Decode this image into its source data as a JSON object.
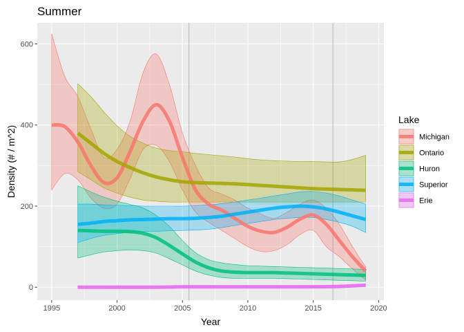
{
  "chart_data": {
    "type": "line",
    "title": "Summer",
    "xlabel": "Year",
    "ylabel": "Density (# / m^2)",
    "xlim": [
      1993.9,
      2020.4
    ],
    "ylim": [
      -32,
      652
    ],
    "x_ticks": [
      1995,
      2000,
      2005,
      2010,
      2015,
      2020
    ],
    "y_ticks": [
      0,
      200,
      400,
      600
    ],
    "x_tick_labels": [
      "1995",
      "2000",
      "2005",
      "2010",
      "2015",
      "2020"
    ],
    "y_tick_labels": [
      "0",
      "200",
      "400",
      "600"
    ],
    "grid": true,
    "reference_lines_x": [
      2005.5,
      2016.5
    ],
    "legend": {
      "title": "Lake",
      "position": "right"
    },
    "series": [
      {
        "name": "Michigan",
        "color": "#F8766D",
        "x": [
          1995,
          1996,
          1997,
          1998,
          1999,
          2000,
          2001,
          2002,
          2003,
          2004,
          2005,
          2006,
          2007,
          2008,
          2009,
          2010,
          2011,
          2012,
          2013,
          2014,
          2015,
          2016,
          2017,
          2018,
          2019
        ],
        "y": [
          400,
          396,
          358,
          300,
          258,
          270,
          335,
          410,
          450,
          410,
          320,
          240,
          205,
          190,
          170,
          150,
          138,
          135,
          148,
          168,
          178,
          155,
          115,
          75,
          40
        ],
        "lower": [
          240,
          280,
          265,
          220,
          195,
          205,
          268,
          340,
          350,
          310,
          240,
          185,
          160,
          140,
          120,
          100,
          88,
          90,
          105,
          130,
          140,
          100,
          75,
          45,
          18
        ],
        "upper": [
          625,
          520,
          470,
          390,
          320,
          340,
          410,
          530,
          575,
          500,
          380,
          300,
          245,
          230,
          215,
          195,
          180,
          170,
          185,
          205,
          215,
          195,
          155,
          100,
          50
        ]
      },
      {
        "name": "Ontario",
        "color": "#A3A500",
        "x": [
          1997,
          1998,
          1999,
          2000,
          2001,
          2002,
          2003,
          2004,
          2005,
          2006,
          2007,
          2008,
          2009,
          2010,
          2011,
          2012,
          2013,
          2014,
          2015,
          2016,
          2017,
          2018,
          2019
        ],
        "y": [
          380,
          355,
          330,
          310,
          295,
          282,
          272,
          265,
          260,
          258,
          257,
          256,
          255,
          253,
          251,
          249,
          247,
          245,
          243,
          242,
          241,
          240,
          239
        ],
        "lower": [
          285,
          265,
          245,
          232,
          222,
          215,
          212,
          210,
          210,
          210,
          210,
          210,
          210,
          210,
          210,
          210,
          210,
          210,
          210,
          210,
          210,
          210,
          210
        ],
        "upper": [
          502,
          470,
          432,
          398,
          372,
          355,
          343,
          337,
          334,
          330,
          327,
          324,
          321,
          317,
          314,
          312,
          311,
          310,
          310,
          309,
          309,
          315,
          325
        ]
      },
      {
        "name": "Huron",
        "color": "#00BF7D",
        "x": [
          1997,
          1998,
          1999,
          2000,
          2001,
          2002,
          2003,
          2004,
          2005,
          2006,
          2007,
          2008,
          2009,
          2010,
          2011,
          2012,
          2013,
          2014,
          2015,
          2016,
          2017,
          2018,
          2019
        ],
        "y": [
          140,
          139,
          138,
          138,
          137,
          133,
          122,
          103,
          82,
          62,
          48,
          40,
          37,
          36,
          36,
          36,
          35,
          34,
          33,
          32,
          31,
          30,
          29
        ],
        "lower": [
          72,
          80,
          87,
          90,
          92,
          90,
          84,
          70,
          55,
          40,
          30,
          24,
          22,
          22,
          22,
          22,
          21,
          20,
          19,
          18,
          17,
          16,
          15
        ],
        "upper": [
          250,
          235,
          222,
          212,
          204,
          195,
          177,
          150,
          115,
          85,
          68,
          60,
          56,
          53,
          52,
          51,
          50,
          49,
          48,
          47,
          46,
          45,
          44
        ]
      },
      {
        "name": "Superior",
        "color": "#00B0F6",
        "x": [
          1997,
          1998,
          1999,
          2000,
          2001,
          2002,
          2003,
          2004,
          2005,
          2006,
          2007,
          2008,
          2009,
          2010,
          2011,
          2012,
          2013,
          2014,
          2015,
          2016,
          2017,
          2018,
          2019
        ],
        "y": [
          155,
          158,
          162,
          164,
          166,
          167,
          168,
          169,
          169,
          170,
          172,
          175,
          180,
          185,
          190,
          195,
          198,
          200,
          198,
          193,
          185,
          176,
          167
        ],
        "lower": [
          110,
          120,
          128,
          132,
          135,
          137,
          138,
          139,
          140,
          141,
          143,
          147,
          152,
          157,
          162,
          167,
          170,
          172,
          172,
          167,
          160,
          150,
          135
        ],
        "upper": [
          205,
          205,
          203,
          202,
          201,
          200,
          200,
          200,
          200,
          201,
          203,
          206,
          210,
          215,
          220,
          225,
          230,
          235,
          236,
          232,
          225,
          215,
          205
        ]
      },
      {
        "name": "Erie",
        "color": "#E76BF3",
        "x": [
          1997,
          1999,
          2001,
          2003,
          2005,
          2007,
          2009,
          2011,
          2013,
          2015,
          2017,
          2019
        ],
        "y": [
          0,
          0,
          0,
          0,
          1,
          1,
          1,
          1,
          1,
          1,
          2,
          5
        ],
        "lower": [
          -3,
          -3,
          -2,
          -2,
          -2,
          -2,
          -2,
          -2,
          -2,
          -1,
          -1,
          2
        ],
        "upper": [
          3,
          3,
          3,
          3,
          3,
          3,
          4,
          4,
          4,
          4,
          5,
          8
        ]
      }
    ]
  }
}
